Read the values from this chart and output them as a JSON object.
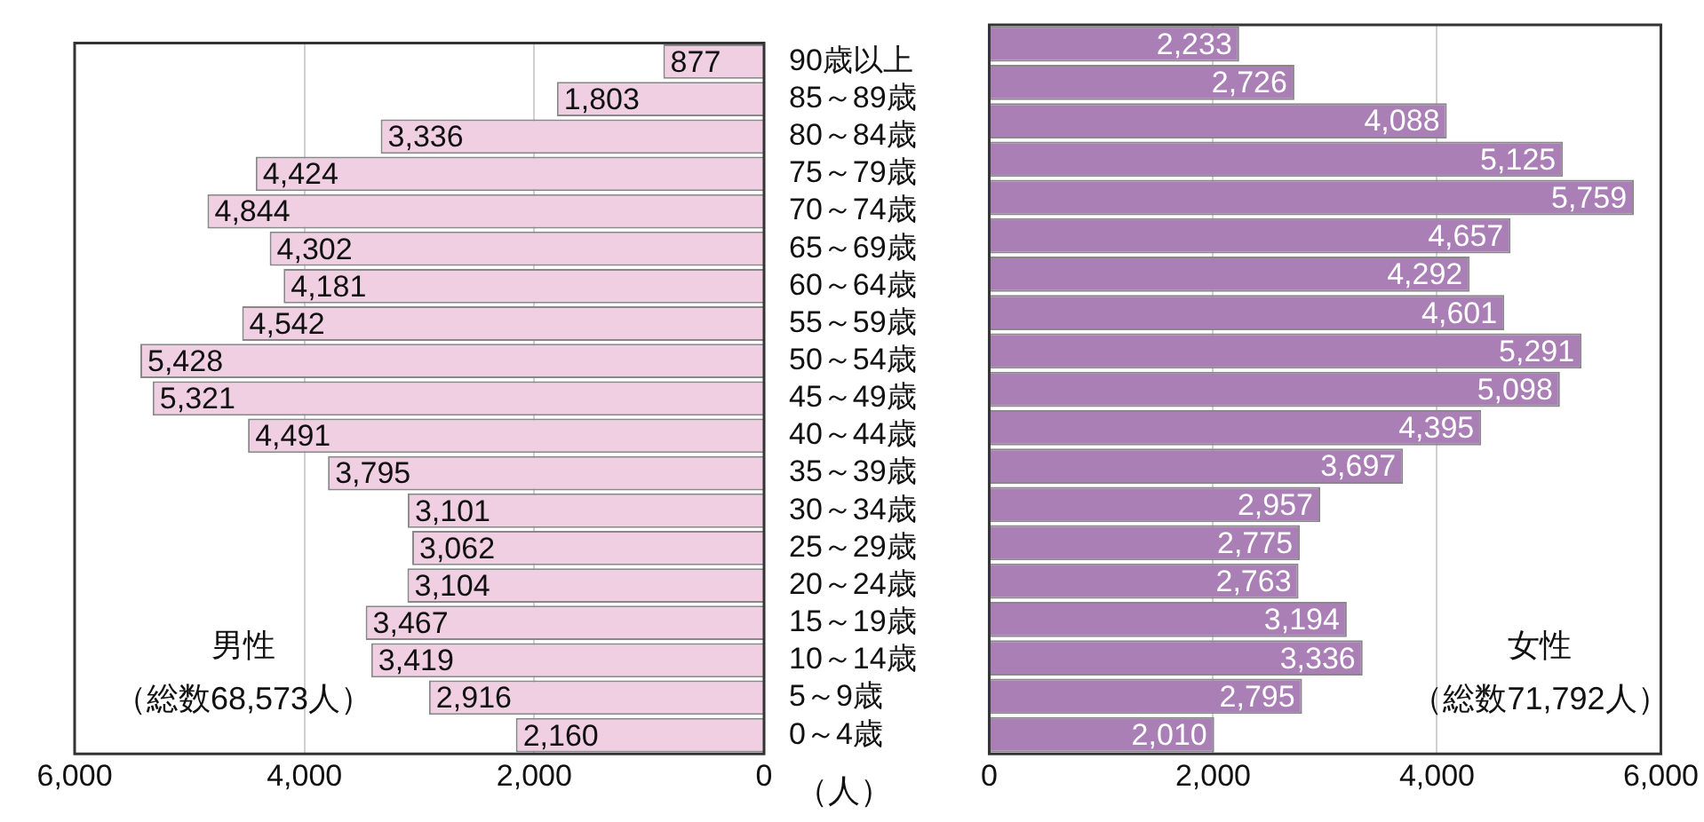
{
  "chart_data": [
    {
      "type": "bar",
      "orientation": "horizontal",
      "categories": [
        "90歳以上",
        "85～89歳",
        "80～84歳",
        "75～79歳",
        "70～74歳",
        "65～69歳",
        "60～64歳",
        "55～59歳",
        "50～54歳",
        "45～49歳",
        "40～44歳",
        "35～39歳",
        "30～34歳",
        "25～29歳",
        "20～24歳",
        "15～19歳",
        "10～14歳",
        "5～9歳",
        "0～4歳"
      ],
      "values": [
        877,
        1803,
        3336,
        4424,
        4844,
        4302,
        4181,
        4542,
        5428,
        5321,
        4491,
        3795,
        3101,
        3062,
        3104,
        3467,
        3419,
        2916,
        2160
      ],
      "value_labels": [
        "877",
        "1,803",
        "3,336",
        "4,424",
        "4,844",
        "4,302",
        "4,181",
        "4,542",
        "5,428",
        "5,321",
        "4,491",
        "3,795",
        "3,101",
        "3,062",
        "3,104",
        "3,467",
        "3,419",
        "2,916",
        "2,160"
      ],
      "color": "#f0cfe3",
      "xlim": [
        6000,
        0
      ],
      "xticks": [
        {
          "value": 6000,
          "label": "6,000"
        },
        {
          "value": 4000,
          "label": "4,000"
        },
        {
          "value": 2000,
          "label": "2,000"
        },
        0
      ],
      "grid": "x",
      "annotations": [
        "男性",
        "（総数68,573人）",
        "（人）"
      ]
    },
    {
      "type": "bar",
      "orientation": "horizontal",
      "categories": [
        null,
        null,
        null,
        null,
        null,
        null,
        null,
        null,
        null,
        null,
        null,
        null,
        null,
        null,
        null,
        null,
        null,
        null,
        null
      ],
      "values": [
        2233,
        2726,
        4088,
        5125,
        5759,
        4657,
        4292,
        4601,
        5291,
        5098,
        4395,
        3697,
        2957,
        2775,
        2763,
        3194,
        3336,
        2795,
        2010
      ],
      "value_labels": [
        "2,233",
        "2,726",
        "4,088",
        "5,125",
        "5,759",
        "4,657",
        "4,292",
        "4,601",
        "5,291",
        "5,098",
        "4,395",
        "3,697",
        "2,957",
        "2,775",
        "2,763",
        "3,194",
        "3,336",
        "2,795",
        "2,010"
      ],
      "color": "#a97fb6",
      "xlim": [
        0,
        6000
      ],
      "xticks": [
        0,
        {
          "value": 2000,
          "label": "2,000"
        },
        {
          "value": 4000,
          "label": "4,000"
        },
        {
          "value": 6000,
          "label": "6,000"
        }
      ],
      "grid": "x",
      "tick_labels": "x",
      "annotations": [
        "女性",
        "（総数71,792人）"
      ]
    }
  ]
}
